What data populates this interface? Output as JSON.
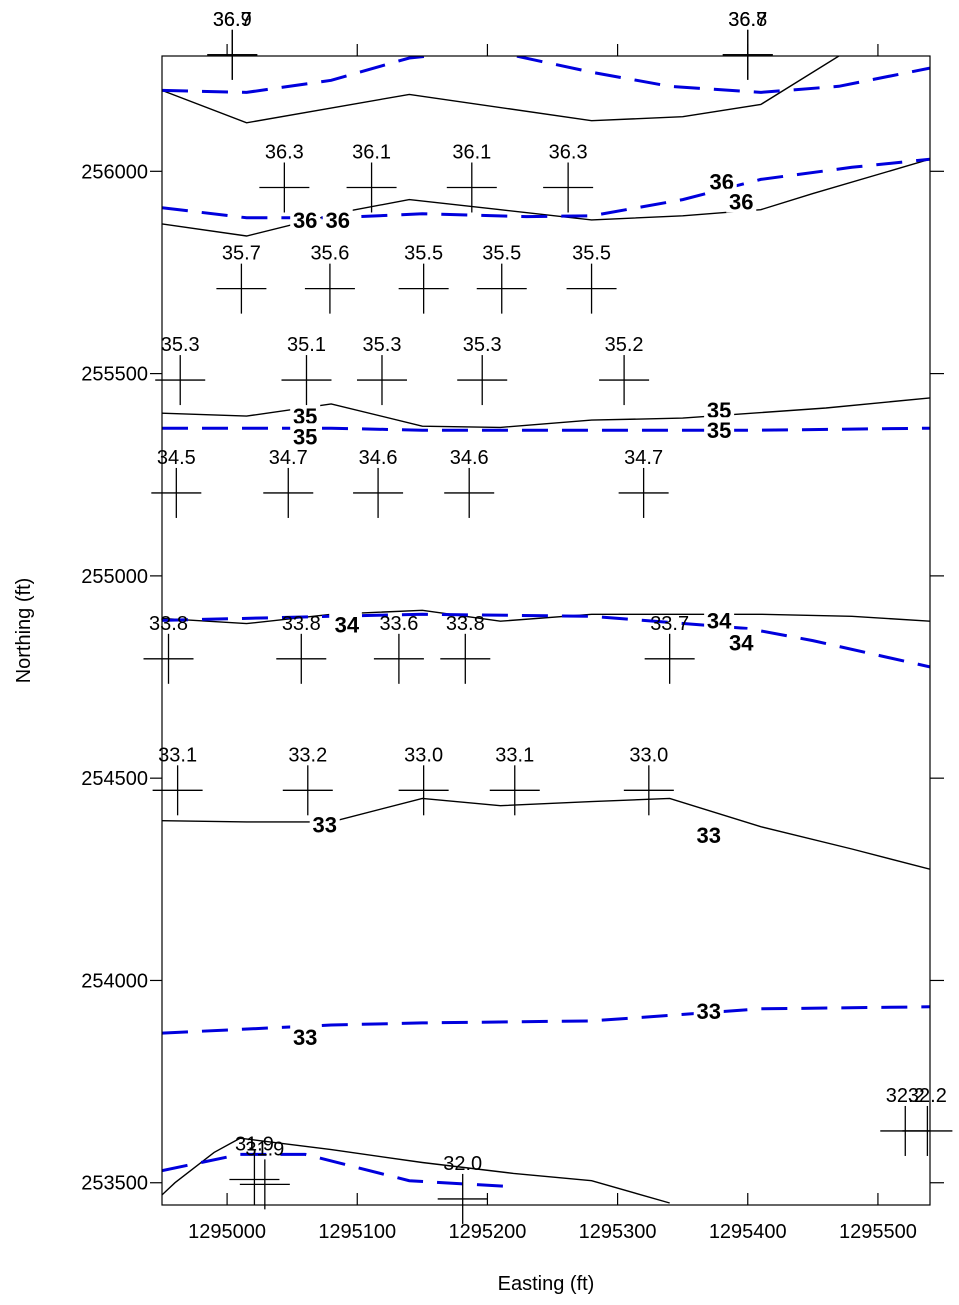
{
  "chart_data": {
    "type": "scatter",
    "xlabel": "Easting (ft)",
    "ylabel": "Northing (ft)",
    "xlim": [
      1294950,
      1295540
    ],
    "ylim": [
      253445,
      256285
    ],
    "x_ticks": [
      1295000,
      1295100,
      1295200,
      1295300,
      1295400,
      1295500
    ],
    "y_ticks": [
      253500,
      254000,
      254500,
      255000,
      255500,
      256000
    ],
    "colors": {
      "solid": "#000000",
      "dashed": "#0000dd"
    },
    "points": [
      {
        "x": 1295004,
        "y": 256288,
        "label": "36.7"
      },
      {
        "x": 1295004,
        "y": 256288,
        "label": "36.9"
      },
      {
        "x": 1295400,
        "y": 256288,
        "label": "36.7"
      },
      {
        "x": 1295400,
        "y": 256288,
        "label": "36.8"
      },
      {
        "x": 1295044,
        "y": 255960,
        "label": "36.3"
      },
      {
        "x": 1295111,
        "y": 255960,
        "label": "36.1"
      },
      {
        "x": 1295188,
        "y": 255960,
        "label": "36.1"
      },
      {
        "x": 1295262,
        "y": 255960,
        "label": "36.3"
      },
      {
        "x": 1295011,
        "y": 255710,
        "label": "35.7"
      },
      {
        "x": 1295079,
        "y": 255710,
        "label": "35.6"
      },
      {
        "x": 1295151,
        "y": 255710,
        "label": "35.5"
      },
      {
        "x": 1295211,
        "y": 255710,
        "label": "35.5"
      },
      {
        "x": 1295280,
        "y": 255710,
        "label": "35.5"
      },
      {
        "x": 1294964,
        "y": 255484,
        "label": "35.3"
      },
      {
        "x": 1295061,
        "y": 255484,
        "label": "35.1"
      },
      {
        "x": 1295119,
        "y": 255484,
        "label": "35.3"
      },
      {
        "x": 1295196,
        "y": 255484,
        "label": "35.3"
      },
      {
        "x": 1295305,
        "y": 255484,
        "label": "35.2"
      },
      {
        "x": 1294961,
        "y": 255205,
        "label": "34.5"
      },
      {
        "x": 1295047,
        "y": 255205,
        "label": "34.7"
      },
      {
        "x": 1295116,
        "y": 255205,
        "label": "34.6"
      },
      {
        "x": 1295186,
        "y": 255205,
        "label": "34.6"
      },
      {
        "x": 1295320,
        "y": 255205,
        "label": "34.7"
      },
      {
        "x": 1294955,
        "y": 254795,
        "label": "33.8"
      },
      {
        "x": 1295057,
        "y": 254795,
        "label": "33.8"
      },
      {
        "x": 1295132,
        "y": 254795,
        "label": "33.6"
      },
      {
        "x": 1295183,
        "y": 254795,
        "label": "33.8"
      },
      {
        "x": 1295340,
        "y": 254795,
        "label": "33.7"
      },
      {
        "x": 1294962,
        "y": 254470,
        "label": "33.1"
      },
      {
        "x": 1295062,
        "y": 254470,
        "label": "33.2"
      },
      {
        "x": 1295151,
        "y": 254470,
        "label": "33.0"
      },
      {
        "x": 1295221,
        "y": 254470,
        "label": "33.1"
      },
      {
        "x": 1295324,
        "y": 254470,
        "label": "33.0"
      },
      {
        "x": 1295521,
        "y": 253628,
        "label": "32.2"
      },
      {
        "x": 1295538,
        "y": 253628,
        "label": "32.2"
      },
      {
        "x": 1295021,
        "y": 253508,
        "label": "31.9"
      },
      {
        "x": 1295029,
        "y": 253496,
        "label": "31.9"
      },
      {
        "x": 1295181,
        "y": 253460,
        "label": "32.0"
      }
    ],
    "solid_lines": [
      [
        [
          1294950,
          256200
        ],
        [
          1295015,
          256120
        ],
        [
          1295140,
          256190
        ],
        [
          1295280,
          256125
        ],
        [
          1295350,
          256135
        ],
        [
          1295410,
          256165
        ],
        [
          1295470,
          256285
        ]
      ],
      [
        [
          1294950,
          255870
        ],
        [
          1295015,
          255840
        ],
        [
          1295090,
          255900
        ],
        [
          1295140,
          255930
        ],
        [
          1295210,
          255905
        ],
        [
          1295280,
          255880
        ],
        [
          1295350,
          255890
        ],
        [
          1295410,
          255905
        ],
        [
          1295450,
          255945
        ],
        [
          1295540,
          256030
        ]
      ],
      [
        [
          1294950,
          255402
        ],
        [
          1295015,
          255395
        ],
        [
          1295080,
          255425
        ],
        [
          1295150,
          255370
        ],
        [
          1295210,
          255367
        ],
        [
          1295280,
          255385
        ],
        [
          1295350,
          255390
        ],
        [
          1295460,
          255415
        ],
        [
          1295540,
          255440
        ]
      ],
      [
        [
          1294950,
          254895
        ],
        [
          1295015,
          254882
        ],
        [
          1295080,
          254905
        ],
        [
          1295150,
          254915
        ],
        [
          1295210,
          254888
        ],
        [
          1295280,
          254905
        ],
        [
          1295410,
          254905
        ],
        [
          1295480,
          254900
        ],
        [
          1295540,
          254888
        ]
      ],
      [
        [
          1294950,
          254395
        ],
        [
          1295015,
          254392
        ],
        [
          1295080,
          254392
        ],
        [
          1295150,
          254450
        ],
        [
          1295210,
          254432
        ],
        [
          1295280,
          254442
        ],
        [
          1295340,
          254450
        ],
        [
          1295410,
          254380
        ],
        [
          1295480,
          254325
        ],
        [
          1295540,
          254275
        ]
      ],
      [
        [
          1294950,
          253470
        ],
        [
          1294960,
          253500
        ],
        [
          1294990,
          253575
        ],
        [
          1295010,
          253610
        ],
        [
          1295080,
          253582
        ],
        [
          1295150,
          253550
        ],
        [
          1295220,
          253523
        ],
        [
          1295280,
          253505
        ],
        [
          1295340,
          253450
        ]
      ]
    ],
    "dashed_lines": [
      [
        [
          1294950,
          256200
        ],
        [
          1295015,
          256195
        ],
        [
          1295080,
          256225
        ],
        [
          1295140,
          256280
        ],
        [
          1295200,
          256300
        ],
        [
          1295280,
          256245
        ],
        [
          1295340,
          256210
        ],
        [
          1295410,
          256195
        ],
        [
          1295470,
          256210
        ],
        [
          1295540,
          256255
        ]
      ],
      [
        [
          1294950,
          255910
        ],
        [
          1295015,
          255885
        ],
        [
          1295080,
          255885
        ],
        [
          1295150,
          255895
        ],
        [
          1295230,
          255888
        ],
        [
          1295280,
          255890
        ],
        [
          1295350,
          255930
        ],
        [
          1295410,
          255980
        ],
        [
          1295480,
          256010
        ],
        [
          1295540,
          256030
        ]
      ],
      [
        [
          1294950,
          255365
        ],
        [
          1295080,
          255365
        ],
        [
          1295150,
          255360
        ],
        [
          1295280,
          255360
        ],
        [
          1295410,
          255360
        ],
        [
          1295540,
          255365
        ]
      ],
      [
        [
          1294950,
          254890
        ],
        [
          1295080,
          254900
        ],
        [
          1295150,
          254905
        ],
        [
          1295280,
          254900
        ],
        [
          1295400,
          254870
        ],
        [
          1295450,
          254840
        ],
        [
          1295540,
          254775
        ]
      ],
      [
        [
          1294950,
          253870
        ],
        [
          1295080,
          253890
        ],
        [
          1295150,
          253895
        ],
        [
          1295280,
          253900
        ],
        [
          1295410,
          253930
        ],
        [
          1295540,
          253935
        ]
      ],
      [
        [
          1294950,
          253530
        ],
        [
          1295010,
          253570
        ],
        [
          1295060,
          253570
        ],
        [
          1295140,
          253505
        ],
        [
          1295220,
          253490
        ]
      ]
    ],
    "contour_labels": [
      {
        "x": 1295060,
        "y": 255880,
        "text": "36",
        "color": "#000000"
      },
      {
        "x": 1295085,
        "y": 255880,
        "text": "36",
        "color": "#000000"
      },
      {
        "x": 1295380,
        "y": 255975,
        "text": "36",
        "color": "#000000"
      },
      {
        "x": 1295395,
        "y": 255925,
        "text": "36",
        "color": "#000000"
      },
      {
        "x": 1295060,
        "y": 255395,
        "text": "35",
        "color": "#000000"
      },
      {
        "x": 1295060,
        "y": 255345,
        "text": "35",
        "color": "#000000"
      },
      {
        "x": 1295378,
        "y": 255410,
        "text": "35",
        "color": "#000000"
      },
      {
        "x": 1295378,
        "y": 255360,
        "text": "35",
        "color": "#000000"
      },
      {
        "x": 1295090,
        "y": 254885,
        "text": "34",
        "color": "#000000"
      },
      {
        "x": 1295092,
        "y": 254880,
        "text": "34",
        "color": "#000000"
      },
      {
        "x": 1295378,
        "y": 254890,
        "text": "34",
        "color": "#000000"
      },
      {
        "x": 1295395,
        "y": 254835,
        "text": "34",
        "color": "#000000"
      },
      {
        "x": 1295075,
        "y": 254385,
        "text": "33",
        "color": "#000000"
      },
      {
        "x": 1295370,
        "y": 254360,
        "text": "33",
        "color": "#000000"
      },
      {
        "x": 1295060,
        "y": 253860,
        "text": "33",
        "color": "#000000"
      },
      {
        "x": 1295370,
        "y": 253925,
        "text": "33",
        "color": "#000000"
      }
    ]
  }
}
